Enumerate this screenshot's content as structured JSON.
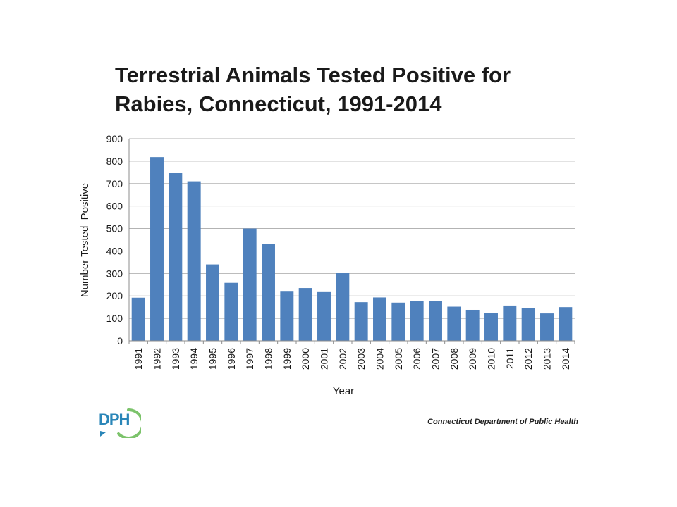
{
  "slide": {
    "title_line1": "Terrestrial Animals Tested Positive for",
    "title_line2": "Rabies, Connecticut, 1991-2014",
    "footer_org": "Connecticut Department of Public Health",
    "logo_text": "DPH",
    "logo_colors": {
      "text": "#2a86b8",
      "ring": "#7cc36b"
    }
  },
  "chart_data": {
    "type": "bar",
    "title": "Terrestrial Animals Tested Positive for Rabies, Connecticut, 1991-2014",
    "xlabel": "Year",
    "ylabel": "Number Tested  Positive",
    "ylim": [
      0,
      900
    ],
    "yticks": [
      0,
      100,
      200,
      300,
      400,
      500,
      600,
      700,
      800,
      900
    ],
    "grid": true,
    "bar_color": "#4f81bd",
    "categories": [
      "1991",
      "1992",
      "1993",
      "1994",
      "1995",
      "1996",
      "1997",
      "1998",
      "1999",
      "2000",
      "2001",
      "2002",
      "2003",
      "2004",
      "2005",
      "2006",
      "2007",
      "2008",
      "2009",
      "2010",
      "2011",
      "2012",
      "2013",
      "2014"
    ],
    "values": [
      192,
      818,
      748,
      710,
      340,
      258,
      500,
      432,
      222,
      235,
      220,
      302,
      172,
      193,
      170,
      178,
      178,
      152,
      138,
      125,
      157,
      146,
      122,
      150
    ]
  }
}
